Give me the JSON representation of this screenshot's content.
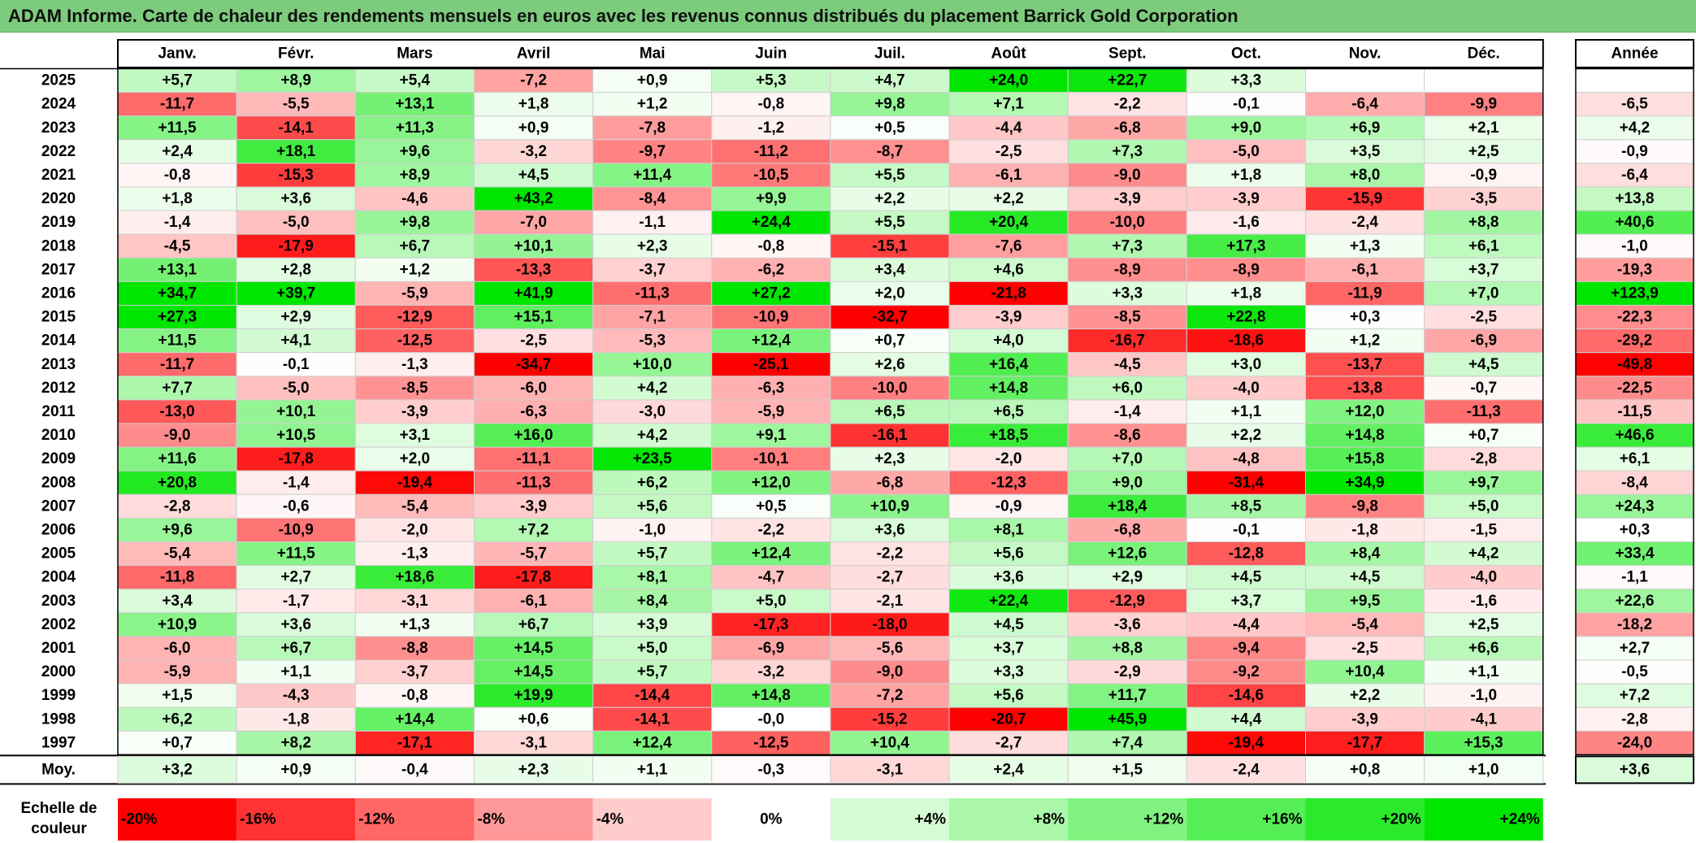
{
  "title": "ADAM Informe. Carte de chaleur des rendements mensuels en euros avec les revenus connus distribués du placement Barrick Gold Corporation",
  "chart_data": {
    "type": "heatmap",
    "columns": [
      "Janv.",
      "Févr.",
      "Mars",
      "Avril",
      "Mai",
      "Juin",
      "Juil.",
      "Août",
      "Sept.",
      "Oct.",
      "Nov.",
      "Déc."
    ],
    "annual_header": "Année",
    "rows": [
      {
        "year": "2025",
        "values": [
          "+5,7",
          "+8,9",
          "+5,4",
          "-7,2",
          "+0,9",
          "+5,3",
          "+4,7",
          "+24,0",
          "+22,7",
          "+3,3",
          "",
          ""
        ],
        "annual": ""
      },
      {
        "year": "2024",
        "values": [
          "-11,7",
          "-5,5",
          "+13,1",
          "+1,8",
          "+1,2",
          "-0,8",
          "+9,8",
          "+7,1",
          "-2,2",
          "-0,1",
          "-6,4",
          "-9,9"
        ],
        "annual": "-6,5"
      },
      {
        "year": "2023",
        "values": [
          "+11,5",
          "-14,1",
          "+11,3",
          "+0,9",
          "-7,8",
          "-1,2",
          "+0,5",
          "-4,4",
          "-6,8",
          "+9,0",
          "+6,9",
          "+2,1"
        ],
        "annual": "+4,2"
      },
      {
        "year": "2022",
        "values": [
          "+2,4",
          "+18,1",
          "+9,6",
          "-3,2",
          "-9,7",
          "-11,2",
          "-8,7",
          "-2,5",
          "+7,3",
          "-5,0",
          "+3,5",
          "+2,5"
        ],
        "annual": "-0,9"
      },
      {
        "year": "2021",
        "values": [
          "-0,8",
          "-15,3",
          "+8,9",
          "+4,5",
          "+11,4",
          "-10,5",
          "+5,5",
          "-6,1",
          "-9,0",
          "+1,8",
          "+8,0",
          "-0,9"
        ],
        "annual": "-6,4"
      },
      {
        "year": "2020",
        "values": [
          "+1,8",
          "+3,6",
          "-4,6",
          "+43,2",
          "-8,4",
          "+9,9",
          "+2,2",
          "+2,2",
          "-3,9",
          "-3,9",
          "-15,9",
          "-3,5"
        ],
        "annual": "+13,8"
      },
      {
        "year": "2019",
        "values": [
          "-1,4",
          "-5,0",
          "+9,8",
          "-7,0",
          "-1,1",
          "+24,4",
          "+5,5",
          "+20,4",
          "-10,0",
          "-1,6",
          "-2,4",
          "+8,8"
        ],
        "annual": "+40,6"
      },
      {
        "year": "2018",
        "values": [
          "-4,5",
          "-17,9",
          "+6,7",
          "+10,1",
          "+2,3",
          "-0,8",
          "-15,1",
          "-7,6",
          "+7,3",
          "+17,3",
          "+1,3",
          "+6,1"
        ],
        "annual": "-1,0"
      },
      {
        "year": "2017",
        "values": [
          "+13,1",
          "+2,8",
          "+1,2",
          "-13,3",
          "-3,7",
          "-6,2",
          "+3,4",
          "+4,6",
          "-8,9",
          "-8,9",
          "-6,1",
          "+3,7"
        ],
        "annual": "-19,3"
      },
      {
        "year": "2016",
        "values": [
          "+34,7",
          "+39,7",
          "-5,9",
          "+41,9",
          "-11,3",
          "+27,2",
          "+2,0",
          "-21,8",
          "+3,3",
          "+1,8",
          "-11,9",
          "+7,0"
        ],
        "annual": "+123,9"
      },
      {
        "year": "2015",
        "values": [
          "+27,3",
          "+2,9",
          "-12,9",
          "+15,1",
          "-7,1",
          "-10,9",
          "-32,7",
          "-3,9",
          "-8,5",
          "+22,8",
          "+0,3",
          "-2,5"
        ],
        "annual": "-22,3"
      },
      {
        "year": "2014",
        "values": [
          "+11,5",
          "+4,1",
          "-12,5",
          "-2,5",
          "-5,3",
          "+12,4",
          "+0,7",
          "+4,0",
          "-16,7",
          "-18,6",
          "+1,2",
          "-6,9"
        ],
        "annual": "-29,2"
      },
      {
        "year": "2013",
        "values": [
          "-11,7",
          "-0,1",
          "-1,3",
          "-34,7",
          "+10,0",
          "-25,1",
          "+2,6",
          "+16,4",
          "-4,5",
          "+3,0",
          "-13,7",
          "+4,5"
        ],
        "annual": "-49,8"
      },
      {
        "year": "2012",
        "values": [
          "+7,7",
          "-5,0",
          "-8,5",
          "-6,0",
          "+4,2",
          "-6,3",
          "-10,0",
          "+14,8",
          "+6,0",
          "-4,0",
          "-13,8",
          "-0,7"
        ],
        "annual": "-22,5"
      },
      {
        "year": "2011",
        "values": [
          "-13,0",
          "+10,1",
          "-3,9",
          "-6,3",
          "-3,0",
          "-5,9",
          "+6,5",
          "+6,5",
          "-1,4",
          "+1,1",
          "+12,0",
          "-11,3"
        ],
        "annual": "-11,5"
      },
      {
        "year": "2010",
        "values": [
          "-9,0",
          "+10,5",
          "+3,1",
          "+16,0",
          "+4,2",
          "+9,1",
          "-16,1",
          "+18,5",
          "-8,6",
          "+2,2",
          "+14,8",
          "+0,7"
        ],
        "annual": "+46,6"
      },
      {
        "year": "2009",
        "values": [
          "+11,6",
          "-17,8",
          "+2,0",
          "-11,1",
          "+23,5",
          "-10,1",
          "+2,3",
          "-2,0",
          "+7,0",
          "-4,8",
          "+15,8",
          "-2,8"
        ],
        "annual": "+6,1"
      },
      {
        "year": "2008",
        "values": [
          "+20,8",
          "-1,4",
          "-19,4",
          "-11,3",
          "+6,2",
          "+12,0",
          "-6,8",
          "-12,3",
          "+9,0",
          "-31,4",
          "+34,9",
          "+9,7"
        ],
        "annual": "-8,4"
      },
      {
        "year": "2007",
        "values": [
          "-2,8",
          "-0,6",
          "-5,4",
          "-3,9",
          "+5,6",
          "+0,5",
          "+10,9",
          "-0,9",
          "+18,4",
          "+8,5",
          "-9,8",
          "+5,0"
        ],
        "annual": "+24,3"
      },
      {
        "year": "2006",
        "values": [
          "+9,6",
          "-10,9",
          "-2,0",
          "+7,2",
          "-1,0",
          "-2,2",
          "+3,6",
          "+8,1",
          "-6,8",
          "-0,1",
          "-1,8",
          "-1,5"
        ],
        "annual": "+0,3"
      },
      {
        "year": "2005",
        "values": [
          "-5,4",
          "+11,5",
          "-1,3",
          "-5,7",
          "+5,7",
          "+12,4",
          "-2,2",
          "+5,6",
          "+12,6",
          "-12,8",
          "+8,4",
          "+4,2"
        ],
        "annual": "+33,4"
      },
      {
        "year": "2004",
        "values": [
          "-11,8",
          "+2,7",
          "+18,6",
          "-17,8",
          "+8,1",
          "-4,7",
          "-2,7",
          "+3,6",
          "+2,9",
          "+4,5",
          "+4,5",
          "-4,0"
        ],
        "annual": "-1,1"
      },
      {
        "year": "2003",
        "values": [
          "+3,4",
          "-1,7",
          "-3,1",
          "-6,1",
          "+8,4",
          "+5,0",
          "-2,1",
          "+22,4",
          "-12,9",
          "+3,7",
          "+9,5",
          "-1,6"
        ],
        "annual": "+22,6"
      },
      {
        "year": "2002",
        "values": [
          "+10,9",
          "+3,6",
          "+1,3",
          "+6,7",
          "+3,9",
          "-17,3",
          "-18,0",
          "+4,5",
          "-3,6",
          "-4,4",
          "-5,4",
          "+2,5"
        ],
        "annual": "-18,2"
      },
      {
        "year": "2001",
        "values": [
          "-6,0",
          "+6,7",
          "-8,8",
          "+14,5",
          "+5,0",
          "-6,9",
          "-5,6",
          "+3,7",
          "+8,8",
          "-9,4",
          "-2,5",
          "+6,6"
        ],
        "annual": "+2,7"
      },
      {
        "year": "2000",
        "values": [
          "-5,9",
          "+1,1",
          "-3,7",
          "+14,5",
          "+5,7",
          "-3,2",
          "-9,0",
          "+3,3",
          "-2,9",
          "-9,2",
          "+10,4",
          "+1,1"
        ],
        "annual": "-0,5"
      },
      {
        "year": "1999",
        "values": [
          "+1,5",
          "-4,3",
          "-0,8",
          "+19,9",
          "-14,4",
          "+14,8",
          "-7,2",
          "+5,6",
          "+11,7",
          "-14,6",
          "+2,2",
          "-1,0"
        ],
        "annual": "+7,2"
      },
      {
        "year": "1998",
        "values": [
          "+6,2",
          "-1,8",
          "+14,4",
          "+0,6",
          "-14,1",
          "-0,0",
          "-15,2",
          "-20,7",
          "+45,9",
          "+4,4",
          "-3,9",
          "-4,1"
        ],
        "annual": "-2,8"
      },
      {
        "year": "1997",
        "values": [
          "+0,7",
          "+8,2",
          "-17,1",
          "-3,1",
          "+12,4",
          "-12,5",
          "+10,4",
          "-2,7",
          "+7,4",
          "-19,4",
          "-17,7",
          "+15,3"
        ],
        "annual": "-24,0"
      }
    ],
    "average": {
      "label": "Moy.",
      "values": [
        "+3,2",
        "+0,9",
        "-0,4",
        "+2,3",
        "+1,1",
        "-0,3",
        "-3,1",
        "+2,4",
        "+1,5",
        "-2,4",
        "+0,8",
        "+1,0"
      ],
      "annual": "+3,6"
    },
    "scale": {
      "label_line1": "Echelle de",
      "label_line2": "couleur",
      "stops": [
        "-20%",
        "-16%",
        "-12%",
        "-8%",
        "-4%",
        "0%",
        "+4%",
        "+8%",
        "+12%",
        "+16%",
        "+20%",
        "+24%"
      ]
    }
  }
}
